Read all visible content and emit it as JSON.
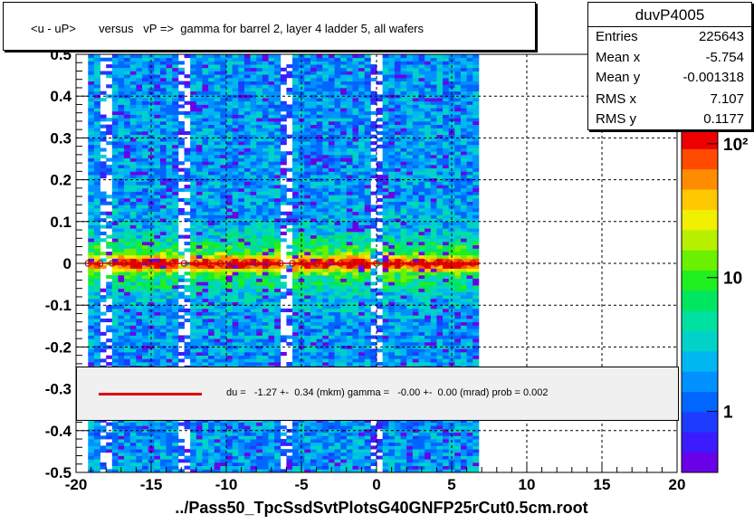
{
  "title": "<u - uP>       versus   vP =>  gamma for barrel 2, layer 4 ladder 5, all wafers",
  "stats": {
    "name": "duvP4005",
    "rows": [
      {
        "key": "Entries",
        "value": "225643"
      },
      {
        "key": "Mean x",
        "value": "-5.754"
      },
      {
        "key": "Mean y",
        "value": "-0.001318"
      },
      {
        "key": "RMS x",
        "value": "7.107"
      },
      {
        "key": "RMS y",
        "value": "0.1177"
      }
    ]
  },
  "legend": {
    "text": "du =   -1.27 +-  0.34 (mkm) gamma =   -0.00 +-  0.00 (mrad) prob = 0.002",
    "line_color": "#e00000"
  },
  "footer": "../Pass50_TpcSsdSvtPlotsG40GNFP25rCut0.5cm.root",
  "chart_data": {
    "type": "heatmap",
    "xlim": [
      -20,
      20
    ],
    "ylim": [
      -0.5,
      0.5
    ],
    "x_ticks": [
      "-20",
      "-15",
      "-10",
      "-5",
      "0",
      "5",
      "10",
      "15",
      "20"
    ],
    "y_ticks": [
      "-0.5",
      "-0.4",
      "-0.3",
      "-0.2",
      "-0.1",
      "0",
      "0.1",
      "0.2",
      "0.3",
      "0.4",
      "0.5"
    ],
    "x_tick_values": [
      -20,
      -15,
      -10,
      -5,
      0,
      5,
      10,
      15,
      20
    ],
    "y_tick_values": [
      -0.5,
      -0.4,
      -0.3,
      -0.2,
      -0.1,
      0,
      0.1,
      0.2,
      0.3,
      0.4,
      0.5
    ],
    "data_x_range": [
      -19.2,
      6.6
    ],
    "gaps_x": [
      [
        -18.2,
        -18.0
      ],
      [
        -12.9,
        -12.6
      ],
      [
        -6.4,
        -6.0
      ],
      [
        -0.1,
        0.1
      ]
    ],
    "grid": true,
    "log_z": true,
    "colorbar_ticks": [
      "1",
      "10",
      "10²"
    ],
    "colorbar_tick_values": [
      1,
      10,
      100
    ],
    "profile_points": [
      {
        "x": -19.2,
        "y": 0
      },
      {
        "x": -18.4,
        "y": 0
      },
      {
        "x": -17.6,
        "y": 0
      },
      {
        "x": -16.8,
        "y": 0
      },
      {
        "x": -16.0,
        "y": 0
      },
      {
        "x": -15.2,
        "y": 0
      },
      {
        "x": -14.4,
        "y": 0
      },
      {
        "x": -13.6,
        "y": 0
      },
      {
        "x": -12.8,
        "y": 0
      },
      {
        "x": -12.0,
        "y": 0
      },
      {
        "x": -11.2,
        "y": 0
      },
      {
        "x": -10.4,
        "y": 0
      },
      {
        "x": -9.6,
        "y": 0
      },
      {
        "x": -8.8,
        "y": 0
      },
      {
        "x": -8.0,
        "y": 0
      },
      {
        "x": -7.2,
        "y": 0
      },
      {
        "x": -6.4,
        "y": 0
      },
      {
        "x": -5.6,
        "y": 0
      },
      {
        "x": -4.8,
        "y": 0
      },
      {
        "x": -4.0,
        "y": 0
      },
      {
        "x": -3.2,
        "y": 0
      },
      {
        "x": -2.4,
        "y": 0
      },
      {
        "x": -1.6,
        "y": 0
      },
      {
        "x": -0.8,
        "y": 0
      },
      {
        "x": 0.0,
        "y": 0
      },
      {
        "x": 0.8,
        "y": 0
      },
      {
        "x": 1.6,
        "y": 0
      },
      {
        "x": 2.4,
        "y": 0
      },
      {
        "x": 3.2,
        "y": 0
      },
      {
        "x": 4.0,
        "y": 0
      },
      {
        "x": 4.8,
        "y": 0
      },
      {
        "x": 5.6,
        "y": 0
      },
      {
        "x": 6.4,
        "y": 0
      }
    ],
    "fit_line": {
      "x": [
        -19.2,
        6.6
      ],
      "y": [
        0,
        0
      ],
      "color": "#e00000"
    }
  }
}
